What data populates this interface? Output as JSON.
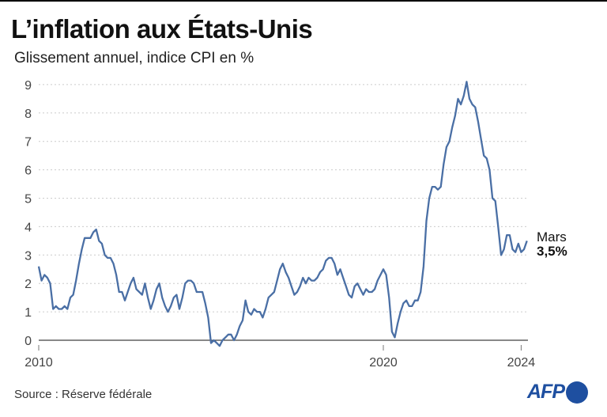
{
  "title": "L’inflation aux États-Unis",
  "subtitle": "Glissement annuel, indice CPI en %",
  "source": "Source : Réserve fédérale",
  "logo": "AFP",
  "colors": {
    "line": "#4a6fa5",
    "logo": "#1e4fa0"
  },
  "chart_data": {
    "type": "line",
    "title": "L’inflation aux États-Unis",
    "subtitle": "Glissement annuel, indice CPI en %",
    "xlabel": "",
    "ylabel": "",
    "x_start": "2010-01",
    "x_frequency": "monthly",
    "xlim": [
      2010,
      2024.25
    ],
    "ylim": [
      0,
      9
    ],
    "yticks": [
      "0",
      "1",
      "2",
      "3",
      "4",
      "5",
      "6",
      "7",
      "8",
      "9"
    ],
    "xticks": [
      {
        "value": 2010,
        "label": "2010"
      },
      {
        "value": 2020,
        "label": "2020"
      },
      {
        "value": 2024,
        "label": "2024"
      }
    ],
    "grid": "horizontal dotted",
    "annotation": {
      "label": "Mars",
      "value": "3,5%"
    },
    "series": [
      {
        "values": [
          2.6,
          2.1,
          2.3,
          2.2,
          2.0,
          1.1,
          1.2,
          1.1,
          1.1,
          1.2,
          1.1,
          1.5,
          1.6,
          2.1,
          2.7,
          3.2,
          3.6,
          3.6,
          3.6,
          3.8,
          3.9,
          3.5,
          3.4,
          3.0,
          2.9,
          2.9,
          2.7,
          2.3,
          1.7,
          1.7,
          1.4,
          1.7,
          2.0,
          2.2,
          1.8,
          1.7,
          1.6,
          2.0,
          1.5,
          1.1,
          1.4,
          1.8,
          2.0,
          1.5,
          1.2,
          1.0,
          1.2,
          1.5,
          1.6,
          1.1,
          1.5,
          2.0,
          2.1,
          2.1,
          2.0,
          1.7,
          1.7,
          1.7,
          1.3,
          0.8,
          -0.1,
          0.0,
          -0.1,
          -0.2,
          0.0,
          0.1,
          0.2,
          0.2,
          0.0,
          0.2,
          0.5,
          0.7,
          1.4,
          1.0,
          0.9,
          1.1,
          1.0,
          1.0,
          0.8,
          1.1,
          1.5,
          1.6,
          1.7,
          2.1,
          2.5,
          2.7,
          2.4,
          2.2,
          1.9,
          1.6,
          1.7,
          1.9,
          2.2,
          2.0,
          2.2,
          2.1,
          2.1,
          2.2,
          2.4,
          2.5,
          2.8,
          2.9,
          2.9,
          2.7,
          2.3,
          2.5,
          2.2,
          1.9,
          1.6,
          1.5,
          1.9,
          2.0,
          1.8,
          1.6,
          1.8,
          1.7,
          1.7,
          1.8,
          2.1,
          2.3,
          2.5,
          2.3,
          1.5,
          0.3,
          0.1,
          0.6,
          1.0,
          1.3,
          1.4,
          1.2,
          1.2,
          1.4,
          1.4,
          1.7,
          2.6,
          4.2,
          5.0,
          5.4,
          5.4,
          5.3,
          5.4,
          6.2,
          6.8,
          7.0,
          7.5,
          7.9,
          8.5,
          8.3,
          8.6,
          9.1,
          8.5,
          8.3,
          8.2,
          7.7,
          7.1,
          6.5,
          6.4,
          6.0,
          5.0,
          4.9,
          4.0,
          3.0,
          3.2,
          3.7,
          3.7,
          3.2,
          3.1,
          3.4,
          3.1,
          3.2,
          3.5
        ]
      }
    ]
  }
}
